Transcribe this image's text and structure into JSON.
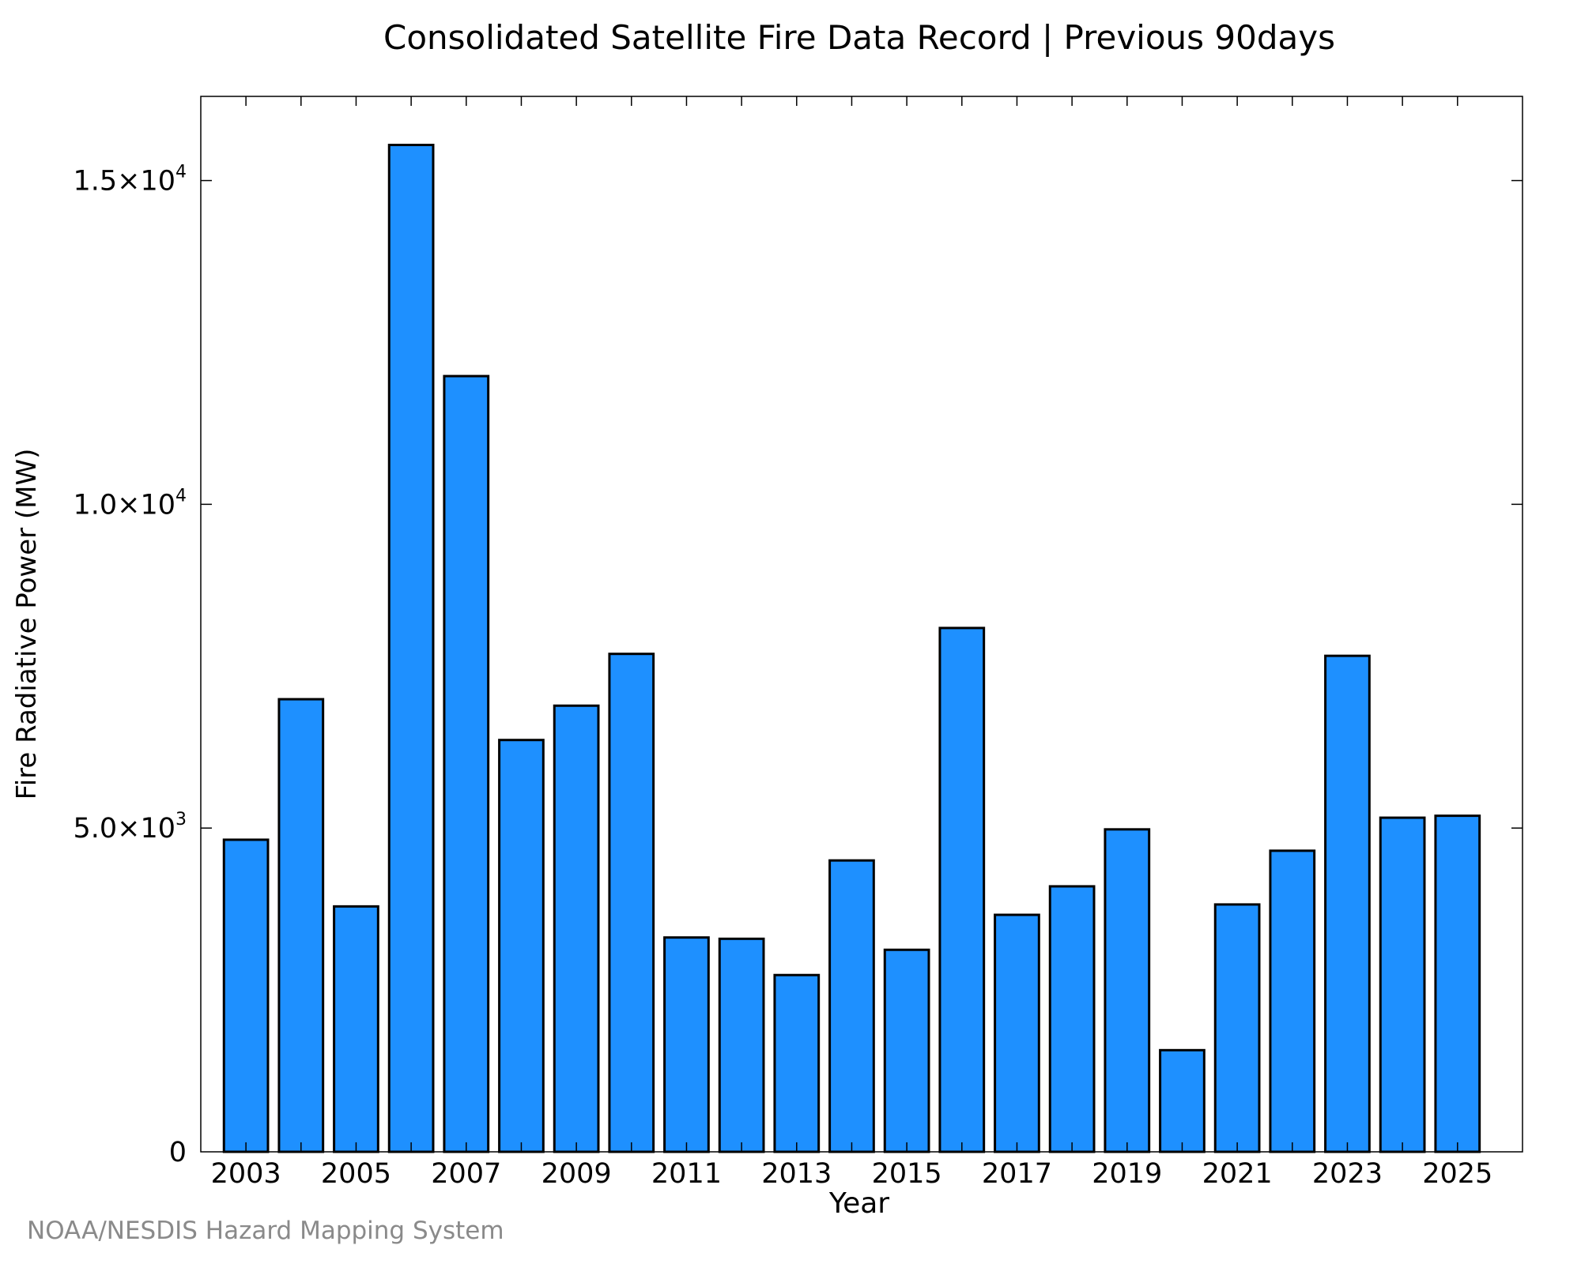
{
  "chart_data": {
    "type": "bar",
    "title": "Consolidated Satellite Fire Data Record | Previous 90days",
    "xlabel": "Year",
    "ylabel": "Fire Radiative Power (MW)",
    "ylim": [
      0,
      16300
    ],
    "y_ticks": [
      {
        "value": 0,
        "mantissa": "0",
        "exp": ""
      },
      {
        "value": 5000,
        "mantissa": "5.0×10",
        "exp": "3"
      },
      {
        "value": 10000,
        "mantissa": "1.0×10",
        "exp": "4"
      },
      {
        "value": 15000,
        "mantissa": "1.5×10",
        "exp": "4"
      }
    ],
    "x_tick_labels": [
      "2003",
      "2005",
      "2007",
      "2009",
      "2011",
      "2013",
      "2015",
      "2017",
      "2019",
      "2021",
      "2023",
      "2025"
    ],
    "categories": [
      2003,
      2004,
      2005,
      2006,
      2007,
      2008,
      2009,
      2010,
      2011,
      2012,
      2013,
      2014,
      2015,
      2016,
      2017,
      2018,
      2019,
      2020,
      2021,
      2022,
      2023,
      2024,
      2025
    ],
    "values": [
      4820,
      6990,
      3790,
      15550,
      11980,
      6360,
      6890,
      7690,
      3310,
      3290,
      2730,
      4500,
      3120,
      8090,
      3660,
      4100,
      4980,
      1570,
      3820,
      4650,
      7660,
      5160,
      5190
    ],
    "grid": false,
    "legend": "none",
    "bar_color": "#1e90ff"
  },
  "footer": {
    "source": "NOAA/NESDIS Hazard Mapping System"
  }
}
